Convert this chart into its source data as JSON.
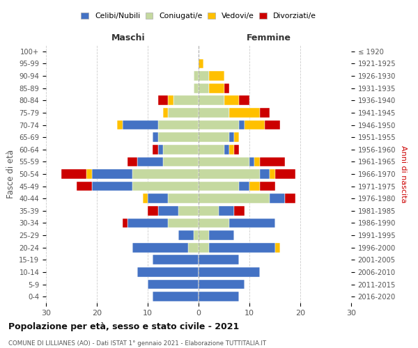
{
  "age_groups": [
    "0-4",
    "5-9",
    "10-14",
    "15-19",
    "20-24",
    "25-29",
    "30-34",
    "35-39",
    "40-44",
    "45-49",
    "50-54",
    "55-59",
    "60-64",
    "65-69",
    "70-74",
    "75-79",
    "80-84",
    "85-89",
    "90-94",
    "95-99",
    "100+"
  ],
  "birth_years": [
    "2016-2020",
    "2011-2015",
    "2006-2010",
    "2001-2005",
    "1996-2000",
    "1991-1995",
    "1986-1990",
    "1981-1985",
    "1976-1980",
    "1971-1975",
    "1966-1970",
    "1961-1965",
    "1956-1960",
    "1951-1955",
    "1946-1950",
    "1941-1945",
    "1936-1940",
    "1931-1935",
    "1926-1930",
    "1921-1925",
    "≤ 1920"
  ],
  "male": {
    "celibi": [
      9,
      10,
      12,
      9,
      11,
      3,
      8,
      4,
      4,
      8,
      8,
      5,
      1,
      1,
      7,
      0,
      0,
      0,
      0,
      0,
      0
    ],
    "coniugati": [
      0,
      0,
      0,
      0,
      2,
      1,
      6,
      4,
      6,
      13,
      13,
      7,
      7,
      8,
      8,
      6,
      5,
      1,
      1,
      0,
      0
    ],
    "vedovi": [
      0,
      0,
      0,
      0,
      0,
      0,
      0,
      0,
      1,
      0,
      1,
      0,
      0,
      0,
      1,
      1,
      1,
      0,
      0,
      0,
      0
    ],
    "divorziati": [
      0,
      0,
      0,
      0,
      0,
      0,
      1,
      2,
      0,
      3,
      5,
      2,
      1,
      0,
      0,
      0,
      2,
      0,
      0,
      0,
      0
    ]
  },
  "female": {
    "nubili": [
      8,
      9,
      12,
      8,
      13,
      5,
      9,
      3,
      3,
      2,
      2,
      1,
      1,
      1,
      1,
      0,
      0,
      0,
      0,
      0,
      0
    ],
    "coniugate": [
      0,
      0,
      0,
      0,
      2,
      2,
      6,
      4,
      14,
      8,
      12,
      10,
      5,
      6,
      8,
      6,
      5,
      2,
      2,
      0,
      0
    ],
    "vedove": [
      0,
      0,
      0,
      0,
      1,
      0,
      0,
      0,
      0,
      2,
      1,
      1,
      1,
      1,
      4,
      6,
      3,
      3,
      3,
      1,
      0
    ],
    "divorziate": [
      0,
      0,
      0,
      0,
      0,
      0,
      0,
      2,
      2,
      3,
      4,
      5,
      1,
      0,
      3,
      2,
      2,
      1,
      0,
      0,
      0
    ]
  },
  "colors": {
    "celibi": "#4472c4",
    "coniugati": "#c5d9a0",
    "vedovi": "#ffc000",
    "divorziati": "#cc0000"
  },
  "xlim": 30,
  "title": "Popolazione per età, sesso e stato civile - 2021",
  "subtitle": "COMUNE DI LILLIANES (AO) - Dati ISTAT 1° gennaio 2021 - Elaborazione TUTTITALIA.IT",
  "ylabel_left": "Fasce di età",
  "ylabel_right": "Anni di nascita",
  "xlabel_left": "Maschi",
  "xlabel_right": "Femmine",
  "legend_labels": [
    "Celibi/Nubili",
    "Coniugati/e",
    "Vedovi/e",
    "Divorziati/e"
  ],
  "bg_color": "#ffffff",
  "grid_color": "#cccccc"
}
